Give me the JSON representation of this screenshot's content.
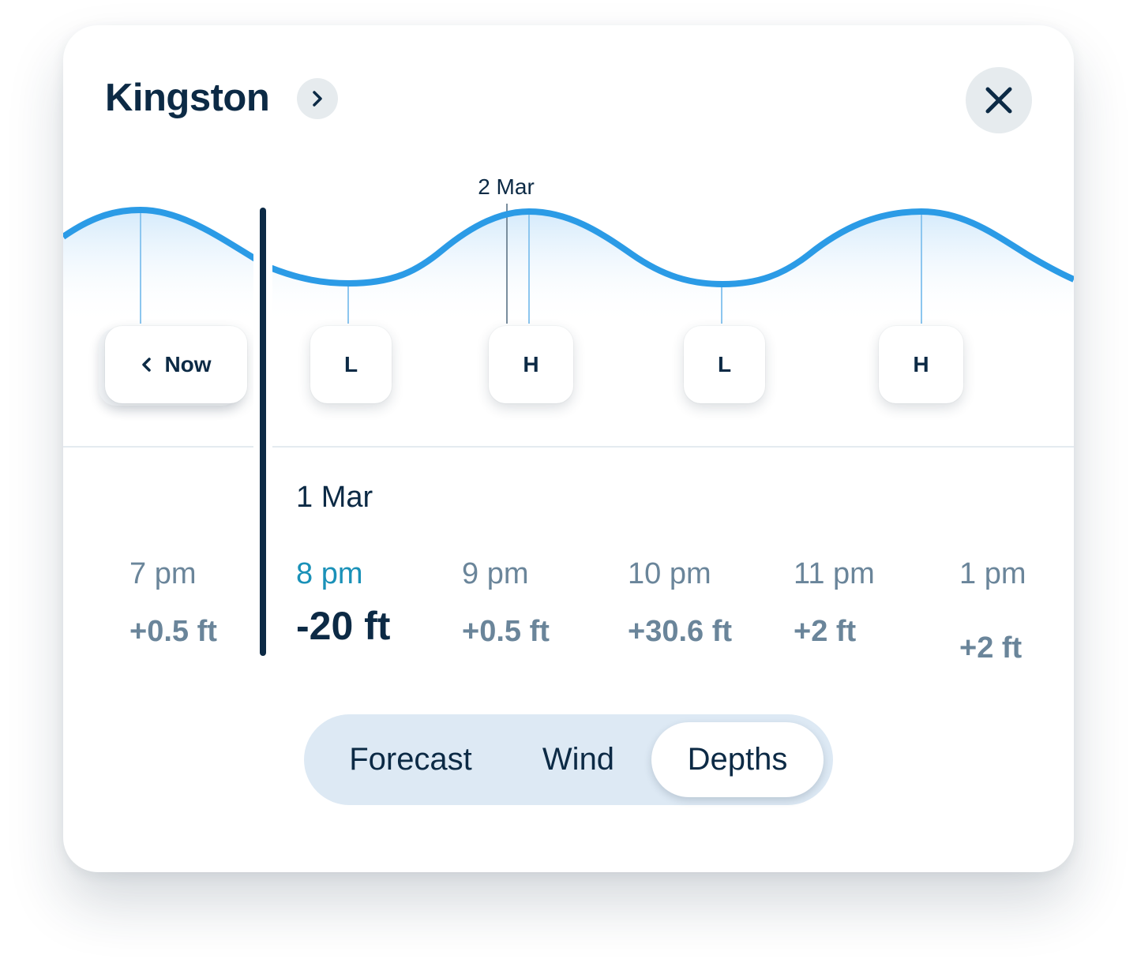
{
  "header": {
    "title": "Kingston",
    "chevron_icon": "chevron-right-icon",
    "close_icon": "close-icon"
  },
  "tide_chart": {
    "top_date_label": "2 Mar",
    "now_label": "Now",
    "now_icon": "chevron-left-icon",
    "markers": [
      {
        "label": "L"
      },
      {
        "label": "H"
      },
      {
        "label": "L"
      },
      {
        "label": "H"
      }
    ],
    "colors": {
      "curve": "#2b9be6",
      "fill": "#dbeefc",
      "text": "#0c2a45"
    }
  },
  "timeline": {
    "date": "1 Mar",
    "items": [
      {
        "time": "7 pm",
        "value": "+0.5 ft"
      },
      {
        "time": "8 pm",
        "value": "-20 ft",
        "active": true
      },
      {
        "time": "9 pm",
        "value": "+0.5 ft"
      },
      {
        "time": "10 pm",
        "value": "+30.6 ft"
      },
      {
        "time": "11 pm",
        "value": "+2 ft"
      },
      {
        "time": "1 pm",
        "value": "+2 ft"
      }
    ],
    "colors": {
      "active_time": "#1a91b8",
      "inactive": "#6a859a"
    }
  },
  "tabs": [
    {
      "label": "Forecast"
    },
    {
      "label": "Wind"
    },
    {
      "label": "Depths",
      "selected": true
    }
  ]
}
